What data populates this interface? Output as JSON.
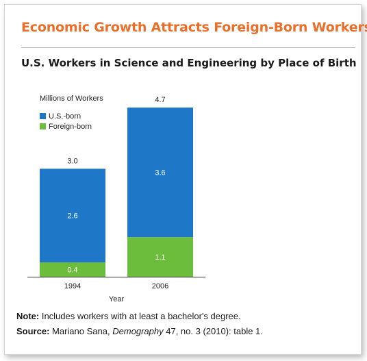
{
  "headline": "Economic Growth Attracts Foreign-Born Workers",
  "colors": {
    "headline": "#e8702a",
    "us_born": "#1f77c8",
    "foreign_born": "#6cbd3c"
  },
  "chart_data": {
    "type": "bar",
    "stacked": true,
    "title": "U.S. Workers in Science and Engineering by Place of Birth",
    "ylabel": "Millions of Workers",
    "xlabel": "Year",
    "categories": [
      "1994",
      "2006"
    ],
    "series": [
      {
        "name": "U.S.-born",
        "values": [
          2.6,
          3.6
        ],
        "color": "#1f77c8"
      },
      {
        "name": "Foreign-born",
        "values": [
          0.4,
          1.1
        ],
        "color": "#6cbd3c"
      }
    ],
    "totals": [
      "3.0",
      "4.7"
    ],
    "value_labels": {
      "U.S.-born": [
        "2.6",
        "3.6"
      ],
      "Foreign-born": [
        "0.4",
        "1.1"
      ]
    },
    "ylim": [
      0,
      4.7
    ],
    "legend_position": "top-left",
    "grid": false
  },
  "note": {
    "label": "Note:",
    "text": " Includes workers with at least a bachelor's degree."
  },
  "source": {
    "label": "Source:",
    "author": " Mariano Sana, ",
    "journal": "Demography",
    "rest": " 47, no. 3 (2010): table 1."
  }
}
